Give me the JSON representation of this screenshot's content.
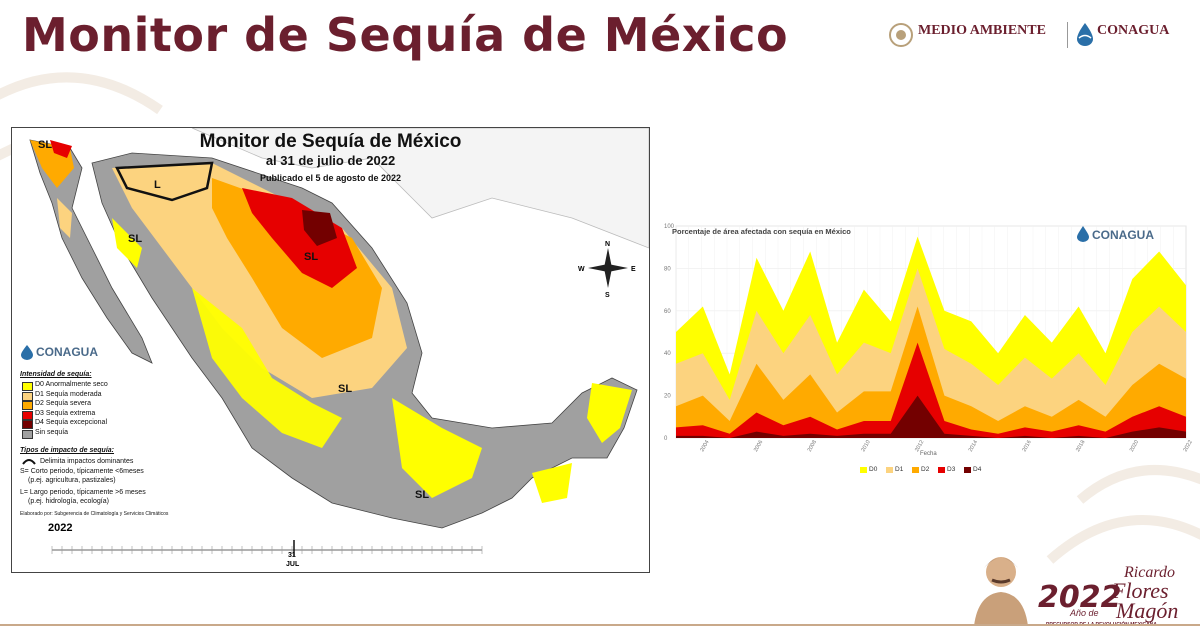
{
  "slide": {
    "title": "Monitor de Sequía de México"
  },
  "header_logos": {
    "medio_ambiente": "MEDIO AMBIENTE",
    "conagua": "CONAGUA"
  },
  "map": {
    "title": "Monitor de Sequía de México",
    "date_line": "al 31 de julio de 2022",
    "published_line": "Publicado el 5 de agosto de 2022",
    "map_labels": [
      "SL",
      "SL",
      "L",
      "SL",
      "SL",
      "SL"
    ],
    "compass": {
      "n": "N",
      "s": "S",
      "e": "E",
      "w": "W"
    },
    "logo": "CONAGUA",
    "legend_title": "Intensidad de sequía:",
    "legend_items": [
      {
        "label": "D0 Anormalmente seco",
        "color": "#ffff00"
      },
      {
        "label": "D1 Sequía moderada",
        "color": "#fcd37f"
      },
      {
        "label": "D2 Sequía severa",
        "color": "#ffaa00"
      },
      {
        "label": "D3 Sequía extrema",
        "color": "#e60000"
      },
      {
        "label": "D4 Sequía excepcional",
        "color": "#730000"
      },
      {
        "label": "Sin sequía",
        "color": "#a0a0a0"
      }
    ],
    "impact_title": "Tipos de impacto de sequía:",
    "impact_lines": [
      "Delimita impactos dominantes",
      "S= Corto periodo, típicamente <6meses",
      "(p.ej. agricultura, pastizales)",
      "L= Largo periodo, típicamente >6 meses",
      "(p.ej. hidrología, ecología)"
    ],
    "credit": "Elaborado por: Subgerencia de Climatología y Servicios Climáticos",
    "year": "2022",
    "timeline_day": "31",
    "timeline_month": "JUL"
  },
  "chart": {
    "logo": "CONAGUA",
    "title": "Porcentaje de área afectada con sequía en México",
    "xlabel": "Fecha"
  },
  "chart_data": {
    "type": "area",
    "title": "Porcentaje de área afectada con sequía en México",
    "xlabel": "Fecha",
    "ylabel": "",
    "ylim": [
      0,
      100
    ],
    "y_ticks": [
      "100",
      "80",
      "60",
      "40",
      "20",
      "0"
    ],
    "x_tick_labels": [
      "2004",
      "2006",
      "2008",
      "2010",
      "2012",
      "2014",
      "2016",
      "2018",
      "2020",
      "2022"
    ],
    "x": [
      2003,
      2004,
      2005,
      2006,
      2007,
      2008,
      2009,
      2010,
      2011,
      2012,
      2013,
      2014,
      2015,
      2016,
      2017,
      2018,
      2019,
      2020,
      2021,
      2022
    ],
    "series": [
      {
        "name": "D0",
        "color": "#ffff00",
        "values": [
          50,
          62,
          30,
          85,
          60,
          88,
          45,
          70,
          55,
          95,
          60,
          55,
          40,
          58,
          45,
          62,
          40,
          75,
          88,
          72
        ]
      },
      {
        "name": "D1",
        "color": "#fcd37f",
        "values": [
          35,
          40,
          18,
          60,
          40,
          58,
          30,
          45,
          40,
          80,
          42,
          35,
          25,
          38,
          28,
          40,
          25,
          50,
          62,
          50
        ]
      },
      {
        "name": "D2",
        "color": "#ffaa00",
        "values": [
          15,
          20,
          8,
          35,
          18,
          30,
          12,
          22,
          22,
          62,
          20,
          15,
          8,
          15,
          10,
          18,
          10,
          25,
          35,
          28
        ]
      },
      {
        "name": "D3",
        "color": "#e60000",
        "values": [
          5,
          6,
          2,
          12,
          6,
          10,
          4,
          8,
          8,
          45,
          8,
          4,
          2,
          5,
          3,
          6,
          3,
          10,
          15,
          10
        ]
      },
      {
        "name": "D4",
        "color": "#730000",
        "values": [
          1,
          1,
          0,
          3,
          1,
          2,
          1,
          2,
          2,
          20,
          2,
          1,
          0,
          1,
          0,
          1,
          0,
          3,
          5,
          3
        ]
      }
    ]
  },
  "footer": {
    "year": "2022",
    "ano_de": "Año de",
    "name_first": "Ricardo",
    "name_mid": "Flores",
    "name_last": "Magón",
    "tagline": "PRECURSOR DE LA REVOLUCIÓN MEXICANA"
  }
}
